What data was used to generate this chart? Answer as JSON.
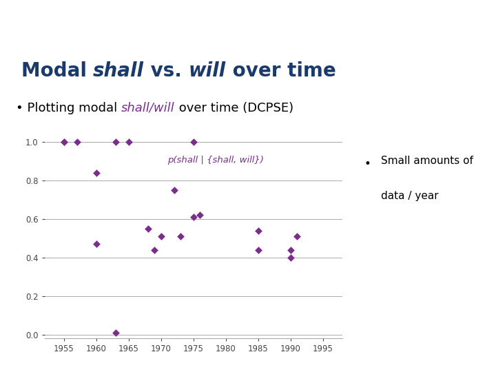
{
  "title_parts": [
    {
      "text": "Modal ",
      "style": "bold",
      "italic": false
    },
    {
      "text": "shall",
      "style": "bold",
      "italic": true
    },
    {
      "text": " vs. ",
      "style": "bold",
      "italic": false
    },
    {
      "text": "will",
      "style": "bold",
      "italic": true
    },
    {
      "text": " over time",
      "style": "bold",
      "italic": false
    }
  ],
  "annotation": "p(shall | {shall, will})",
  "header_color": "#4a9fb5",
  "header_text_color": "#ffffff",
  "title_color": "#1a3a6b",
  "dot_color": "#7b2d8b",
  "subtitle_italic_color": "#7b2d8b",
  "annotation_color": "#7b2d8b",
  "bg_color": "#ffffff",
  "plot_bg": "#ffffff",
  "scatter_x": [
    1955,
    1955,
    1957,
    1960,
    1960,
    1963,
    1963,
    1965,
    1968,
    1969,
    1970,
    1972,
    1973,
    1975,
    1975,
    1976,
    1985,
    1985,
    1990,
    1990,
    1991
  ],
  "scatter_y": [
    1.0,
    1.0,
    1.0,
    0.84,
    0.47,
    1.0,
    0.01,
    1.0,
    0.55,
    0.44,
    0.51,
    0.75,
    0.51,
    1.0,
    0.61,
    0.62,
    0.54,
    0.44,
    0.44,
    0.4,
    0.51
  ],
  "xlim": [
    1952,
    1998
  ],
  "ylim": [
    -0.02,
    1.08
  ],
  "xticks": [
    1955,
    1960,
    1965,
    1970,
    1975,
    1980,
    1985,
    1990,
    1995
  ],
  "yticks": [
    0.0,
    0.2,
    0.4,
    0.6,
    0.8,
    1.0
  ],
  "grid_color": "#aaaaaa",
  "tick_color": "#444444"
}
